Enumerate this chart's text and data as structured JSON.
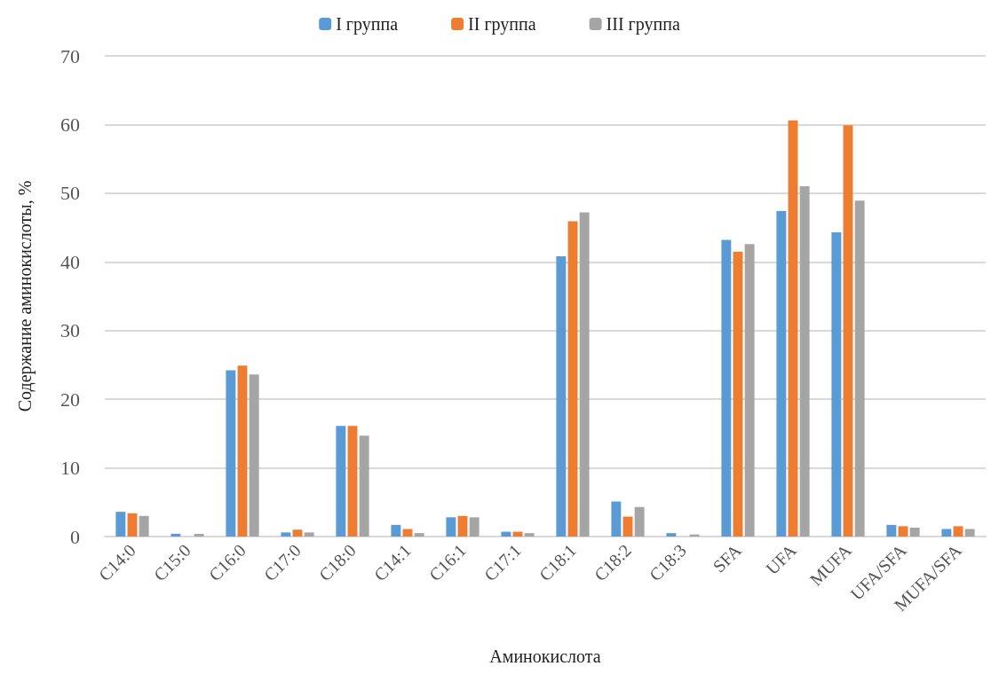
{
  "chart_data": {
    "type": "bar",
    "xlabel": "Аминокислота",
    "ylabel": "Содержание аминокислоты, %",
    "categories": [
      "C14:0",
      "C15:0",
      "C16:0",
      "C17:0",
      "C18:0",
      "C14:1",
      "C16:1",
      "C17:1",
      "C18:1",
      "C18:2",
      "C18:3",
      "SFA",
      "UFA",
      "MUFA",
      "UFA/SFA",
      "MUFA/SFA"
    ],
    "series": [
      {
        "name": "I группа",
        "color": "#5b9bd5",
        "values": [
          3.6,
          0.4,
          24.2,
          0.6,
          16.1,
          1.7,
          2.8,
          0.7,
          40.8,
          5.1,
          0.5,
          43.2,
          47.4,
          44.3,
          1.7,
          1.1
        ]
      },
      {
        "name": "II группа",
        "color": "#ed7d31",
        "values": [
          3.4,
          0,
          24.9,
          1.0,
          16.1,
          1.1,
          3.0,
          0.7,
          45.9,
          2.9,
          0,
          41.5,
          60.6,
          59.9,
          1.5,
          1.5
        ]
      },
      {
        "name": "III группа",
        "color": "#a5a5a5",
        "values": [
          3.0,
          0.4,
          23.6,
          0.6,
          14.7,
          0.5,
          2.8,
          0.5,
          47.2,
          4.3,
          0.3,
          42.6,
          51.0,
          48.9,
          1.3,
          1.1
        ]
      }
    ],
    "ylim": [
      0,
      70
    ],
    "yticks": [
      0,
      10,
      20,
      30,
      40,
      50,
      60,
      70
    ],
    "grid": "y",
    "legend": "top"
  }
}
